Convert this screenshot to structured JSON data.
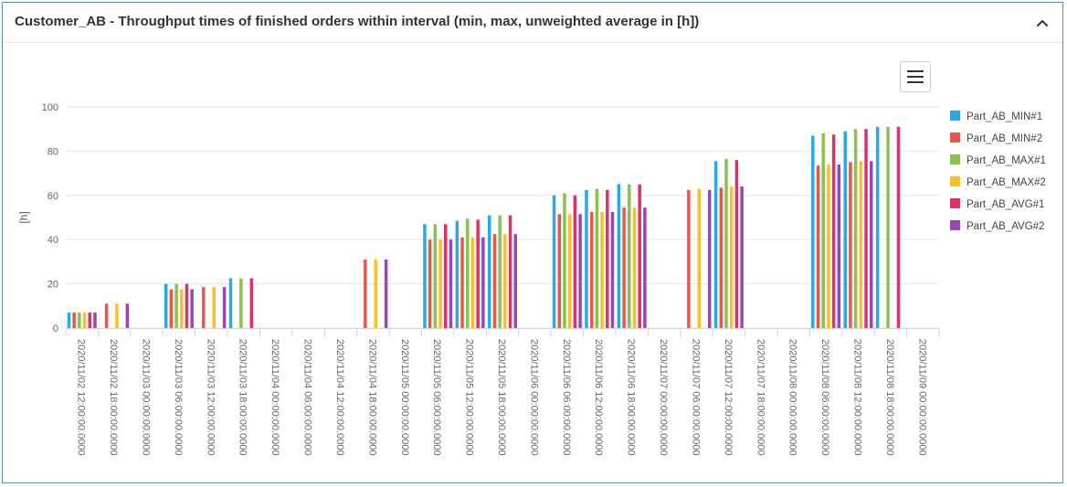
{
  "panel": {
    "title": "Customer_AB - Throughput times of finished orders within interval (min, max, unweighted average in [h])",
    "collapse_icon": "chevron-up-icon",
    "menu_icon": "hamburger-menu-icon"
  },
  "chart_data": {
    "type": "bar",
    "title": "",
    "xlabel": "",
    "ylabel": "[h]",
    "ylim": [
      0,
      100
    ],
    "yticks": [
      0,
      20,
      40,
      60,
      80,
      100
    ],
    "grid": true,
    "legend_position": "right",
    "categories": [
      "2020/11/02 12:00:00.0000",
      "2020/11/02 18:00:00.0000",
      "2020/11/03 00:00:00.0000",
      "2020/11/03 06:00:00.0000",
      "2020/11/03 12:00:00.0000",
      "2020/11/03 18:00:00.0000",
      "2020/11/04 00:00:00.0000",
      "2020/11/04 06:00:00.0000",
      "2020/11/04 12:00:00.0000",
      "2020/11/04 18:00:00.0000",
      "2020/11/05 00:00:00.0000",
      "2020/11/05 06:00:00.0000",
      "2020/11/05 12:00:00.0000",
      "2020/11/05 18:00:00.0000",
      "2020/11/06 00:00:00.0000",
      "2020/11/06 06:00:00.0000",
      "2020/11/06 12:00:00.0000",
      "2020/11/06 18:00:00.0000",
      "2020/11/07 00:00:00.0000",
      "2020/11/07 06:00:00.0000",
      "2020/11/07 12:00:00.0000",
      "2020/11/07 18:00:00.0000",
      "2020/11/08 00:00:00.0000",
      "2020/11/08 06:00:00.0000",
      "2020/11/08 12:00:00.0000",
      "2020/11/08 18:00:00.0000",
      "2020/11/09 00:00:00.0000"
    ],
    "series": [
      {
        "name": "Part_AB_MIN#1",
        "color": "#2aa7e8",
        "values": [
          7,
          null,
          null,
          20,
          null,
          22.5,
          null,
          null,
          null,
          null,
          null,
          47,
          48.5,
          51,
          null,
          60,
          62.5,
          65,
          null,
          null,
          75.5,
          null,
          null,
          87,
          89,
          91,
          null
        ]
      },
      {
        "name": "Part_AB_MIN#2",
        "color": "#e8574c",
        "values": [
          7,
          11,
          null,
          17.5,
          18.5,
          null,
          null,
          null,
          null,
          31,
          null,
          40,
          41,
          42.5,
          null,
          51.5,
          52.5,
          54.5,
          null,
          62.5,
          63.5,
          null,
          null,
          73.5,
          75,
          null,
          null
        ]
      },
      {
        "name": "Part_AB_MAX#1",
        "color": "#8cc152",
        "values": [
          7,
          null,
          null,
          20,
          null,
          22.5,
          null,
          null,
          null,
          null,
          null,
          47,
          49.5,
          51,
          null,
          61,
          63,
          65,
          null,
          null,
          76.5,
          null,
          null,
          88,
          90,
          91,
          null
        ]
      },
      {
        "name": "Part_AB_MAX#2",
        "color": "#f6c026",
        "values": [
          7,
          11,
          null,
          17.5,
          18.5,
          null,
          null,
          null,
          null,
          31,
          null,
          40,
          41,
          42.5,
          null,
          51.5,
          52.5,
          54.5,
          null,
          63,
          64,
          null,
          null,
          74,
          75.5,
          null,
          null
        ]
      },
      {
        "name": "Part_AB_AVG#1",
        "color": "#e0306b",
        "values": [
          7,
          null,
          null,
          20,
          null,
          22.5,
          null,
          null,
          null,
          null,
          null,
          47,
          49,
          51,
          null,
          60,
          62.5,
          65,
          null,
          null,
          76,
          null,
          null,
          87.5,
          90,
          91,
          null
        ]
      },
      {
        "name": "Part_AB_AVG#2",
        "color": "#9b45b7",
        "values": [
          7,
          11,
          null,
          17.5,
          18.5,
          null,
          null,
          null,
          null,
          31,
          null,
          40,
          41,
          42.5,
          null,
          51.5,
          52.5,
          54.5,
          null,
          62.5,
          64,
          null,
          null,
          74,
          75.5,
          null,
          null
        ]
      }
    ]
  }
}
